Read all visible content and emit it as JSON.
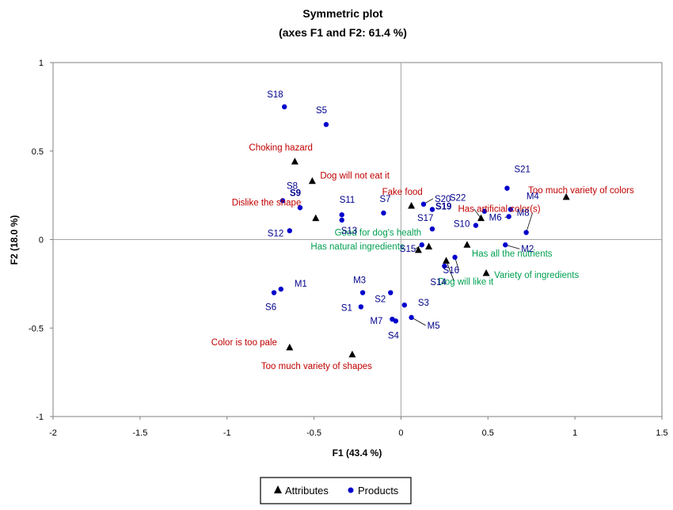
{
  "chart_data": {
    "type": "scatter",
    "title": "Symmetric plot",
    "subtitle": "(axes F1 and F2: 61.4 %)",
    "xlabel": "F1 (43.4 %)",
    "ylabel": "F2 (18.0 %)",
    "xlim": [
      -2,
      1.5
    ],
    "ylim": [
      -1,
      1
    ],
    "xticks": [
      -2,
      -1.5,
      -1,
      -0.5,
      0,
      0.5,
      1,
      1.5
    ],
    "yticks": [
      -1,
      -0.5,
      0,
      0.5,
      1
    ],
    "xtick_labels": [
      "-2",
      "-1.5",
      "-1",
      "-0.5",
      "0",
      "0.5",
      "1",
      "1.5"
    ],
    "ytick_labels": [
      "-1",
      "-0.5",
      "0",
      "0.5",
      "1"
    ],
    "grid": false,
    "legend_position": "bottom-center",
    "colors": {
      "attributes_marker": "#000000",
      "products_marker": "#0000cc",
      "attribute_label_red": "#c00000",
      "attribute_label_green": "#00a050",
      "product_label": "#00008b"
    },
    "series": [
      {
        "name": "Attributes",
        "marker": "triangle",
        "points": [
          {
            "label": "Choking hazard",
            "x": -0.61,
            "y": 0.44,
            "color": "red"
          },
          {
            "label": "Dog will not eat it",
            "x": -0.51,
            "y": 0.33,
            "color": "red"
          },
          {
            "label": "Dislike the shape",
            "x": -0.49,
            "y": 0.12,
            "color": "red"
          },
          {
            "label": "Fake food",
            "x": 0.06,
            "y": 0.19,
            "color": "red"
          },
          {
            "label": "Too much variety of colors",
            "x": 0.95,
            "y": 0.24,
            "color": "red"
          },
          {
            "label": "Has artificial color(s)",
            "x": 0.46,
            "y": 0.12,
            "color": "red"
          },
          {
            "label": "Good for dog's health",
            "x": 0.16,
            "y": -0.04,
            "color": "green"
          },
          {
            "label": "Has natural ingredients",
            "x": 0.1,
            "y": -0.06,
            "color": "green"
          },
          {
            "label": "Has all the nutrients",
            "x": 0.38,
            "y": -0.03,
            "color": "green"
          },
          {
            "label": "Dog will like it",
            "x": 0.26,
            "y": -0.12,
            "color": "green"
          },
          {
            "label": "Variety of ingredients",
            "x": 0.49,
            "y": -0.19,
            "color": "green"
          },
          {
            "label": "Color is too pale",
            "x": -0.64,
            "y": -0.61,
            "color": "red"
          },
          {
            "label": "Too much variety of shapes",
            "x": -0.28,
            "y": -0.65,
            "color": "red"
          }
        ]
      },
      {
        "name": "Products",
        "marker": "circle",
        "points": [
          {
            "label": "S18",
            "x": -0.67,
            "y": 0.75
          },
          {
            "label": "S5",
            "x": -0.43,
            "y": 0.65
          },
          {
            "label": "S8",
            "x": -0.68,
            "y": 0.22
          },
          {
            "label": "S9",
            "x": -0.58,
            "y": 0.18
          },
          {
            "label": "S11",
            "x": -0.34,
            "y": 0.14
          },
          {
            "label": "S13",
            "x": -0.34,
            "y": 0.11
          },
          {
            "label": "S12",
            "x": -0.64,
            "y": 0.05
          },
          {
            "label": "S7",
            "x": -0.1,
            "y": 0.15
          },
          {
            "label": "S20",
            "x": 0.13,
            "y": 0.2
          },
          {
            "label": "S19",
            "x": 0.18,
            "y": 0.17
          },
          {
            "label": "S17",
            "x": 0.18,
            "y": 0.06
          },
          {
            "label": "S15",
            "x": 0.12,
            "y": -0.03
          },
          {
            "label": "S21",
            "x": 0.61,
            "y": 0.29
          },
          {
            "label": "S22",
            "x": 0.48,
            "y": 0.16
          },
          {
            "label": "M4",
            "x": 0.63,
            "y": 0.17
          },
          {
            "label": "M6",
            "x": 0.62,
            "y": 0.13
          },
          {
            "label": "M8",
            "x": 0.72,
            "y": 0.04
          },
          {
            "label": "S10",
            "x": 0.43,
            "y": 0.08
          },
          {
            "label": "M2",
            "x": 0.6,
            "y": -0.03
          },
          {
            "label": "S16",
            "x": 0.31,
            "y": -0.1
          },
          {
            "label": "S14",
            "x": 0.25,
            "y": -0.15
          },
          {
            "label": "M1",
            "x": -0.69,
            "y": -0.28
          },
          {
            "label": "S6",
            "x": -0.73,
            "y": -0.3
          },
          {
            "label": "M3",
            "x": -0.22,
            "y": -0.3
          },
          {
            "label": "S1",
            "x": -0.23,
            "y": -0.38
          },
          {
            "label": "S2",
            "x": -0.06,
            "y": -0.3
          },
          {
            "label": "S3",
            "x": 0.02,
            "y": -0.37
          },
          {
            "label": "M7",
            "x": -0.05,
            "y": -0.45
          },
          {
            "label": "S4",
            "x": -0.03,
            "y": -0.46
          },
          {
            "label": "M5",
            "x": 0.06,
            "y": -0.44
          }
        ]
      }
    ]
  }
}
